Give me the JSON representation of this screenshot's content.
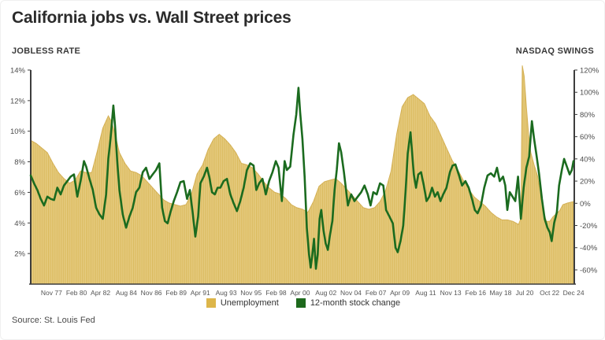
{
  "page": {
    "title": "California jobs vs. Wall Street prices",
    "source": "Source: St. Louis Fed"
  },
  "colors": {
    "gold_base": "#e7cd84",
    "gold_stripe": "#dab95c",
    "gold_edge": "#d4b055",
    "green_line": "#1b6b1f",
    "axis_line": "#3d3d3d",
    "tick_text": "#4d4d4d",
    "x_label_text": "#555555"
  },
  "chart_data": {
    "type": "area",
    "title": "California jobs vs. Wall Street prices",
    "grid": false,
    "legend_position": "bottom-center",
    "left_axis": {
      "title": "JOBLESS RATE",
      "ticks": [
        "2%",
        "4%",
        "6%",
        "8%",
        "10%",
        "12%",
        "14%"
      ],
      "tick_values": [
        2,
        4,
        6,
        8,
        10,
        12,
        14
      ],
      "range": [
        0,
        14
      ]
    },
    "right_axis": {
      "title": "NASDAQ SWINGS",
      "ticks": [
        "-60%",
        "-40%",
        "-20%",
        "0%",
        "20%",
        "40%",
        "60%",
        "80%",
        "100%",
        "120%"
      ],
      "tick_values": [
        -60,
        -40,
        -20,
        0,
        20,
        40,
        60,
        80,
        100,
        120
      ],
      "range": [
        -72.8,
        120
      ]
    },
    "x_axis": {
      "tick_labels": [
        "Nov 77",
        "Feb 80",
        "Apr 82",
        "Aug 84",
        "Nov 86",
        "Feb 89",
        "Apr 91",
        "Aug 93",
        "Nov 95",
        "Feb 98",
        "Apr 00",
        "Aug 02",
        "Nov 04",
        "Feb 07",
        "Apr 09",
        "Aug 11",
        "Nov 13",
        "Feb 16",
        "May 18",
        "Jul 20",
        "Oct 22",
        "Dec 24"
      ],
      "tick_positions": [
        1977.875,
        1980.125,
        1982.292,
        1984.625,
        1986.875,
        1989.125,
        1991.292,
        1993.625,
        1995.875,
        1998.125,
        2000.292,
        2002.625,
        2004.875,
        2007.125,
        2009.292,
        2011.625,
        2013.875,
        2016.125,
        2018.375,
        2020.542,
        2022.792,
        2024.958
      ],
      "range": [
        1976.0,
        2025.02
      ]
    },
    "legend": [
      {
        "label": "Unemployment",
        "color": "#ddb64a",
        "type": "area"
      },
      {
        "label": "12-month stock change",
        "color": "#1d691c",
        "type": "line"
      }
    ],
    "series": [
      {
        "name": "Unemployment",
        "axis": "left",
        "type": "area",
        "unit": "%",
        "x": [
          1976.0,
          1976.5,
          1977.0,
          1977.5,
          1978.0,
          1978.5,
          1979.0,
          1979.5,
          1980.0,
          1980.5,
          1981.0,
          1981.5,
          1982.0,
          1982.5,
          1983.0,
          1983.3,
          1983.7,
          1984.0,
          1984.5,
          1985.0,
          1985.5,
          1986.0,
          1986.5,
          1987.0,
          1987.5,
          1988.0,
          1988.5,
          1989.0,
          1989.5,
          1990.0,
          1990.5,
          1991.0,
          1991.5,
          1992.0,
          1992.5,
          1993.0,
          1993.5,
          1994.0,
          1994.5,
          1995.0,
          1995.5,
          1996.0,
          1996.5,
          1997.0,
          1997.5,
          1998.0,
          1998.5,
          1999.0,
          1999.5,
          2000.0,
          2000.5,
          2001.0,
          2001.5,
          2002.0,
          2002.5,
          2003.0,
          2003.5,
          2004.0,
          2004.5,
          2005.0,
          2005.5,
          2006.0,
          2006.5,
          2007.0,
          2007.5,
          2008.0,
          2008.5,
          2009.0,
          2009.5,
          2010.0,
          2010.5,
          2011.0,
          2011.5,
          2012.0,
          2012.5,
          2013.0,
          2013.5,
          2014.0,
          2014.5,
          2015.0,
          2015.5,
          2016.0,
          2016.5,
          2017.0,
          2017.5,
          2018.0,
          2018.5,
          2019.0,
          2019.5,
          2020.0,
          2020.2,
          2020.33,
          2020.5,
          2020.7,
          2020.9,
          2021.1,
          2021.4,
          2021.7,
          2021.95,
          2022.2,
          2022.5,
          2022.8,
          2023.1,
          2023.4,
          2023.7,
          2024.0,
          2024.4,
          2024.95
        ],
        "y": [
          9.4,
          9.2,
          8.9,
          8.6,
          7.9,
          7.3,
          6.9,
          6.6,
          6.8,
          7.4,
          7.3,
          7.3,
          8.7,
          10.2,
          11.0,
          10.6,
          9.5,
          8.6,
          7.9,
          7.4,
          7.3,
          7.1,
          6.7,
          6.3,
          5.9,
          5.5,
          5.3,
          5.2,
          5.1,
          5.2,
          5.9,
          7.2,
          7.8,
          8.8,
          9.5,
          9.8,
          9.5,
          9.1,
          8.6,
          7.9,
          7.8,
          7.6,
          7.2,
          6.7,
          6.3,
          6.0,
          5.9,
          5.6,
          5.2,
          5.0,
          4.9,
          4.7,
          5.4,
          6.4,
          6.7,
          6.8,
          6.9,
          6.6,
          6.2,
          5.8,
          5.4,
          5.0,
          4.9,
          5.0,
          5.4,
          6.1,
          7.4,
          9.8,
          11.6,
          12.2,
          12.4,
          12.1,
          11.8,
          11.0,
          10.5,
          9.7,
          8.9,
          8.1,
          7.5,
          6.8,
          6.2,
          5.7,
          5.4,
          5.1,
          4.7,
          4.4,
          4.2,
          4.2,
          4.1,
          3.9,
          4.3,
          14.3,
          13.6,
          11.6,
          9.8,
          8.6,
          7.8,
          7.1,
          6.0,
          4.9,
          4.1,
          4.1,
          4.4,
          4.6,
          4.8,
          5.2,
          5.3,
          5.4
        ]
      },
      {
        "name": "12-month stock change",
        "axis": "right",
        "type": "line",
        "unit": "%",
        "x": [
          1976.0,
          1976.3,
          1976.6,
          1976.9,
          1977.2,
          1977.5,
          1977.8,
          1978.1,
          1978.4,
          1978.7,
          1979.0,
          1979.3,
          1979.6,
          1979.9,
          1980.2,
          1980.5,
          1980.8,
          1981.0,
          1981.3,
          1981.6,
          1981.9,
          1982.2,
          1982.5,
          1982.8,
          1983.0,
          1983.2,
          1983.45,
          1983.6,
          1983.8,
          1984.0,
          1984.3,
          1984.6,
          1984.9,
          1985.2,
          1985.5,
          1985.8,
          1986.1,
          1986.4,
          1986.7,
          1987.0,
          1987.3,
          1987.6,
          1987.85,
          1988.1,
          1988.35,
          1988.6,
          1988.9,
          1989.2,
          1989.5,
          1989.8,
          1990.1,
          1990.35,
          1990.6,
          1990.85,
          1991.1,
          1991.3,
          1991.6,
          1991.9,
          1992.1,
          1992.35,
          1992.6,
          1992.85,
          1993.1,
          1993.4,
          1993.7,
          1994.0,
          1994.3,
          1994.6,
          1994.9,
          1995.2,
          1995.5,
          1995.8,
          1996.1,
          1996.35,
          1996.6,
          1996.9,
          1997.2,
          1997.5,
          1997.8,
          1998.1,
          1998.35,
          1998.65,
          1998.9,
          1999.1,
          1999.4,
          1999.7,
          1999.95,
          2000.15,
          2000.3,
          2000.5,
          2000.7,
          2000.9,
          2001.1,
          2001.25,
          2001.4,
          2001.55,
          2001.72,
          2001.88,
          2002.05,
          2002.2,
          2002.4,
          2002.6,
          2002.8,
          2003.0,
          2003.2,
          2003.4,
          2003.6,
          2003.8,
          2004.0,
          2004.25,
          2004.6,
          2004.9,
          2005.2,
          2005.5,
          2005.8,
          2006.1,
          2006.4,
          2006.65,
          2006.9,
          2007.2,
          2007.5,
          2007.8,
          2008.05,
          2008.35,
          2008.65,
          2008.9,
          2009.1,
          2009.35,
          2009.6,
          2009.8,
          2010.0,
          2010.25,
          2010.55,
          2010.75,
          2010.95,
          2011.2,
          2011.45,
          2011.7,
          2011.95,
          2012.2,
          2012.45,
          2012.7,
          2012.95,
          2013.2,
          2013.5,
          2013.8,
          2014.05,
          2014.3,
          2014.6,
          2014.9,
          2015.2,
          2015.5,
          2015.8,
          2016.05,
          2016.3,
          2016.6,
          2016.9,
          2017.2,
          2017.5,
          2017.8,
          2018.05,
          2018.3,
          2018.6,
          2018.8,
          2018.98,
          2019.2,
          2019.45,
          2019.7,
          2019.95,
          2020.2,
          2020.45,
          2020.7,
          2020.95,
          2021.2,
          2021.4,
          2021.6,
          2021.85,
          2022.1,
          2022.35,
          2022.6,
          2022.8,
          2022.98,
          2023.2,
          2023.45,
          2023.65,
          2023.9,
          2024.1,
          2024.35,
          2024.6,
          2024.8,
          2024.95
        ],
        "y": [
          25,
          18,
          12,
          4,
          -2,
          6,
          4,
          3,
          14,
          8,
          16,
          20,
          24,
          26,
          6,
          20,
          38,
          33,
          22,
          12,
          -4,
          -10,
          -14,
          8,
          40,
          58,
          88,
          70,
          38,
          12,
          -10,
          -22,
          -12,
          -4,
          10,
          14,
          28,
          32,
          22,
          26,
          30,
          36,
          -4,
          -16,
          -18,
          -8,
          2,
          10,
          19,
          20,
          4,
          12,
          -8,
          -30,
          -12,
          18,
          24,
          32,
          24,
          10,
          8,
          14,
          14,
          20,
          22,
          8,
          0,
          -7,
          2,
          14,
          30,
          36,
          34,
          12,
          18,
          22,
          8,
          20,
          28,
          38,
          32,
          2,
          38,
          30,
          33,
          62,
          80,
          104,
          82,
          58,
          24,
          -22,
          -46,
          -58,
          -46,
          -32,
          -59,
          -46,
          -14,
          -6,
          -24,
          -36,
          -42,
          -28,
          -16,
          12,
          30,
          54,
          46,
          28,
          -2,
          8,
          2,
          6,
          10,
          16,
          8,
          -2,
          10,
          8,
          18,
          16,
          -6,
          -12,
          -18,
          -40,
          -44,
          -34,
          -20,
          10,
          45,
          64,
          26,
          14,
          26,
          28,
          16,
          2,
          6,
          14,
          6,
          10,
          2,
          8,
          14,
          28,
          34,
          35,
          26,
          16,
          20,
          14,
          4,
          -6,
          -9,
          -2,
          14,
          25,
          27,
          24,
          32,
          20,
          24,
          16,
          -6,
          10,
          6,
          2,
          24,
          -14,
          14,
          32,
          42,
          74,
          58,
          44,
          26,
          4,
          -14,
          -22,
          -26,
          -34,
          -18,
          -8,
          16,
          30,
          40,
          33,
          26,
          30,
          38
        ]
      }
    ]
  }
}
